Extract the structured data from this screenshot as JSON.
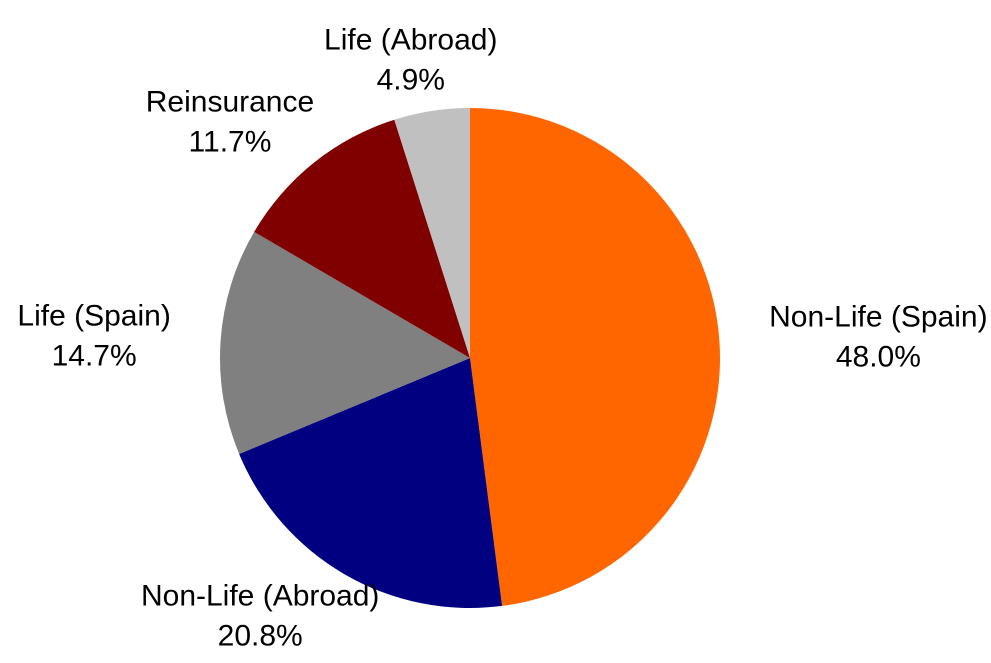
{
  "chart_data": {
    "type": "pie",
    "categories": [
      "Non-Life (Spain)",
      "Non-Life (Abroad)",
      "Life (Spain)",
      "Reinsurance",
      "Life (Abroad)"
    ],
    "values": [
      48.0,
      20.8,
      14.7,
      11.7,
      4.9
    ],
    "value_labels": [
      "48.0%",
      "20.8%",
      "14.7%",
      "11.7%",
      "4.9%"
    ],
    "colors": [
      "#ff6600",
      "#000080",
      "#808080",
      "#800000",
      "#c0c0c0"
    ]
  }
}
